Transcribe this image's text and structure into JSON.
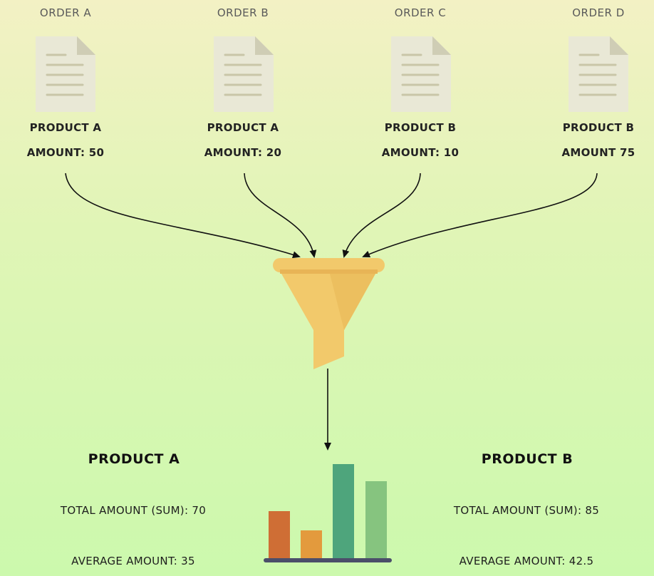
{
  "orders": [
    {
      "title": "ORDER A",
      "product": "PRODUCT A",
      "amount": "AMOUNT: 50"
    },
    {
      "title": "ORDER B",
      "product": "PRODUCT A",
      "amount": "AMOUNT: 20"
    },
    {
      "title": "ORDER C",
      "product": "PRODUCT B",
      "amount": "AMOUNT: 10"
    },
    {
      "title": "ORDER D",
      "product": "PRODUCT B",
      "amount": "AMOUNT 75"
    }
  ],
  "summaries": [
    {
      "title": "PRODUCT A",
      "total": "TOTAL AMOUNT (SUM): 70",
      "average": "AVERAGE AMOUNT: 35"
    },
    {
      "title": "PRODUCT B",
      "total": "TOTAL AMOUNT (SUM): 85",
      "average": "AVERAGE AMOUNT: 42.5"
    }
  ],
  "icons": {
    "document": "document-icon",
    "funnel": "funnel-icon",
    "chart": "bar-chart-icon"
  },
  "colors": {
    "funnel": "#f2c96b",
    "funnel_rim": "#e8b456",
    "doc_body": "#e9e8d6",
    "doc_lines": "#c9c6a8",
    "bar1": "#cf6e35",
    "bar2": "#e39a3d",
    "bar3": "#4ea57c",
    "bar4": "#86c47f",
    "baseline": "#4b4e6a"
  }
}
